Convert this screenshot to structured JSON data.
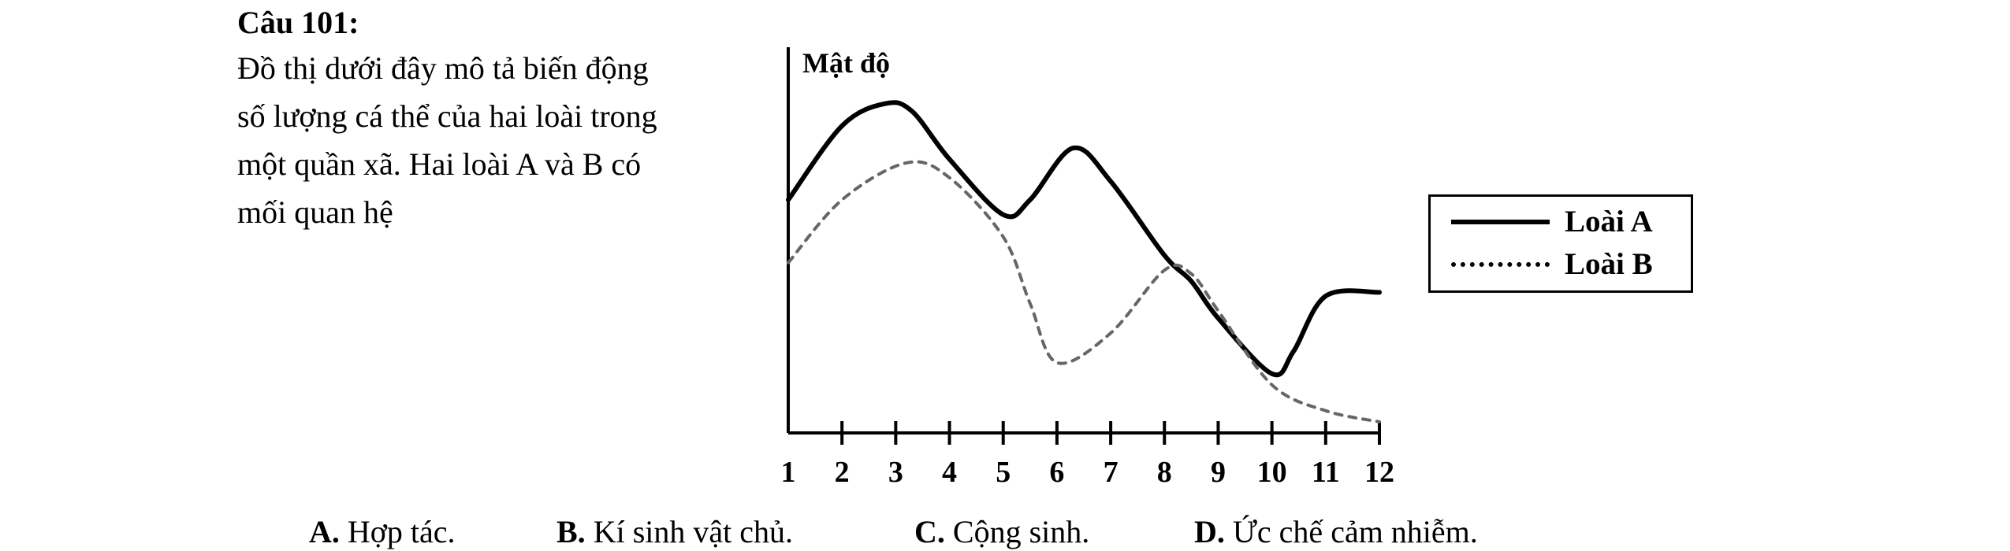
{
  "question": {
    "title": "Câu 101:",
    "lines": [
      "Đồ thị dưới đây mô tả biến động",
      "số lượng cá thể của hai loài trong",
      "một quần xã. Hai loài A và B có",
      "mối quan hệ"
    ]
  },
  "chart_data": {
    "type": "line",
    "title": "",
    "ylabel": "Mật độ",
    "xlabel": "",
    "x": [
      1,
      2,
      3,
      4,
      5,
      6,
      7,
      8,
      9,
      10,
      11,
      12
    ],
    "xlim": [
      1,
      12
    ],
    "ylim": [
      0,
      10
    ],
    "grid": false,
    "legend_position": "right",
    "series": [
      {
        "name": "Loài A",
        "style": "solid",
        "x": [
          1,
          2,
          2.8,
          3.3,
          4,
          5,
          5.5,
          6.3,
          7,
          8,
          8.5,
          9,
          10,
          10.4,
          11,
          12
        ],
        "values": [
          6.3,
          8.3,
          8.9,
          8.7,
          7.4,
          5.9,
          6.3,
          7.7,
          6.8,
          4.8,
          4.1,
          3.1,
          1.6,
          2.2,
          3.7,
          3.8
        ]
      },
      {
        "name": "Loài B",
        "style": "dotted",
        "x": [
          1,
          2,
          3.2,
          4,
          5,
          5.5,
          6,
          7,
          8,
          8.5,
          9,
          10,
          11,
          12
        ],
        "values": [
          4.6,
          6.3,
          7.3,
          6.9,
          5.3,
          3.5,
          1.9,
          2.7,
          4.4,
          4.3,
          3.3,
          1.3,
          0.6,
          0.3
        ]
      }
    ]
  },
  "legend": {
    "items": [
      {
        "label": "Loài A",
        "style": "solid"
      },
      {
        "label": "Loài B",
        "style": "dotted"
      }
    ]
  },
  "answers": [
    {
      "letter": "A.",
      "text": "Hợp tác."
    },
    {
      "letter": "B.",
      "text": "Kí sinh vật chủ."
    },
    {
      "letter": "C.",
      "text": "Cộng sinh."
    },
    {
      "letter": "D.",
      "text": "Ức chế cảm nhiễm."
    }
  ]
}
